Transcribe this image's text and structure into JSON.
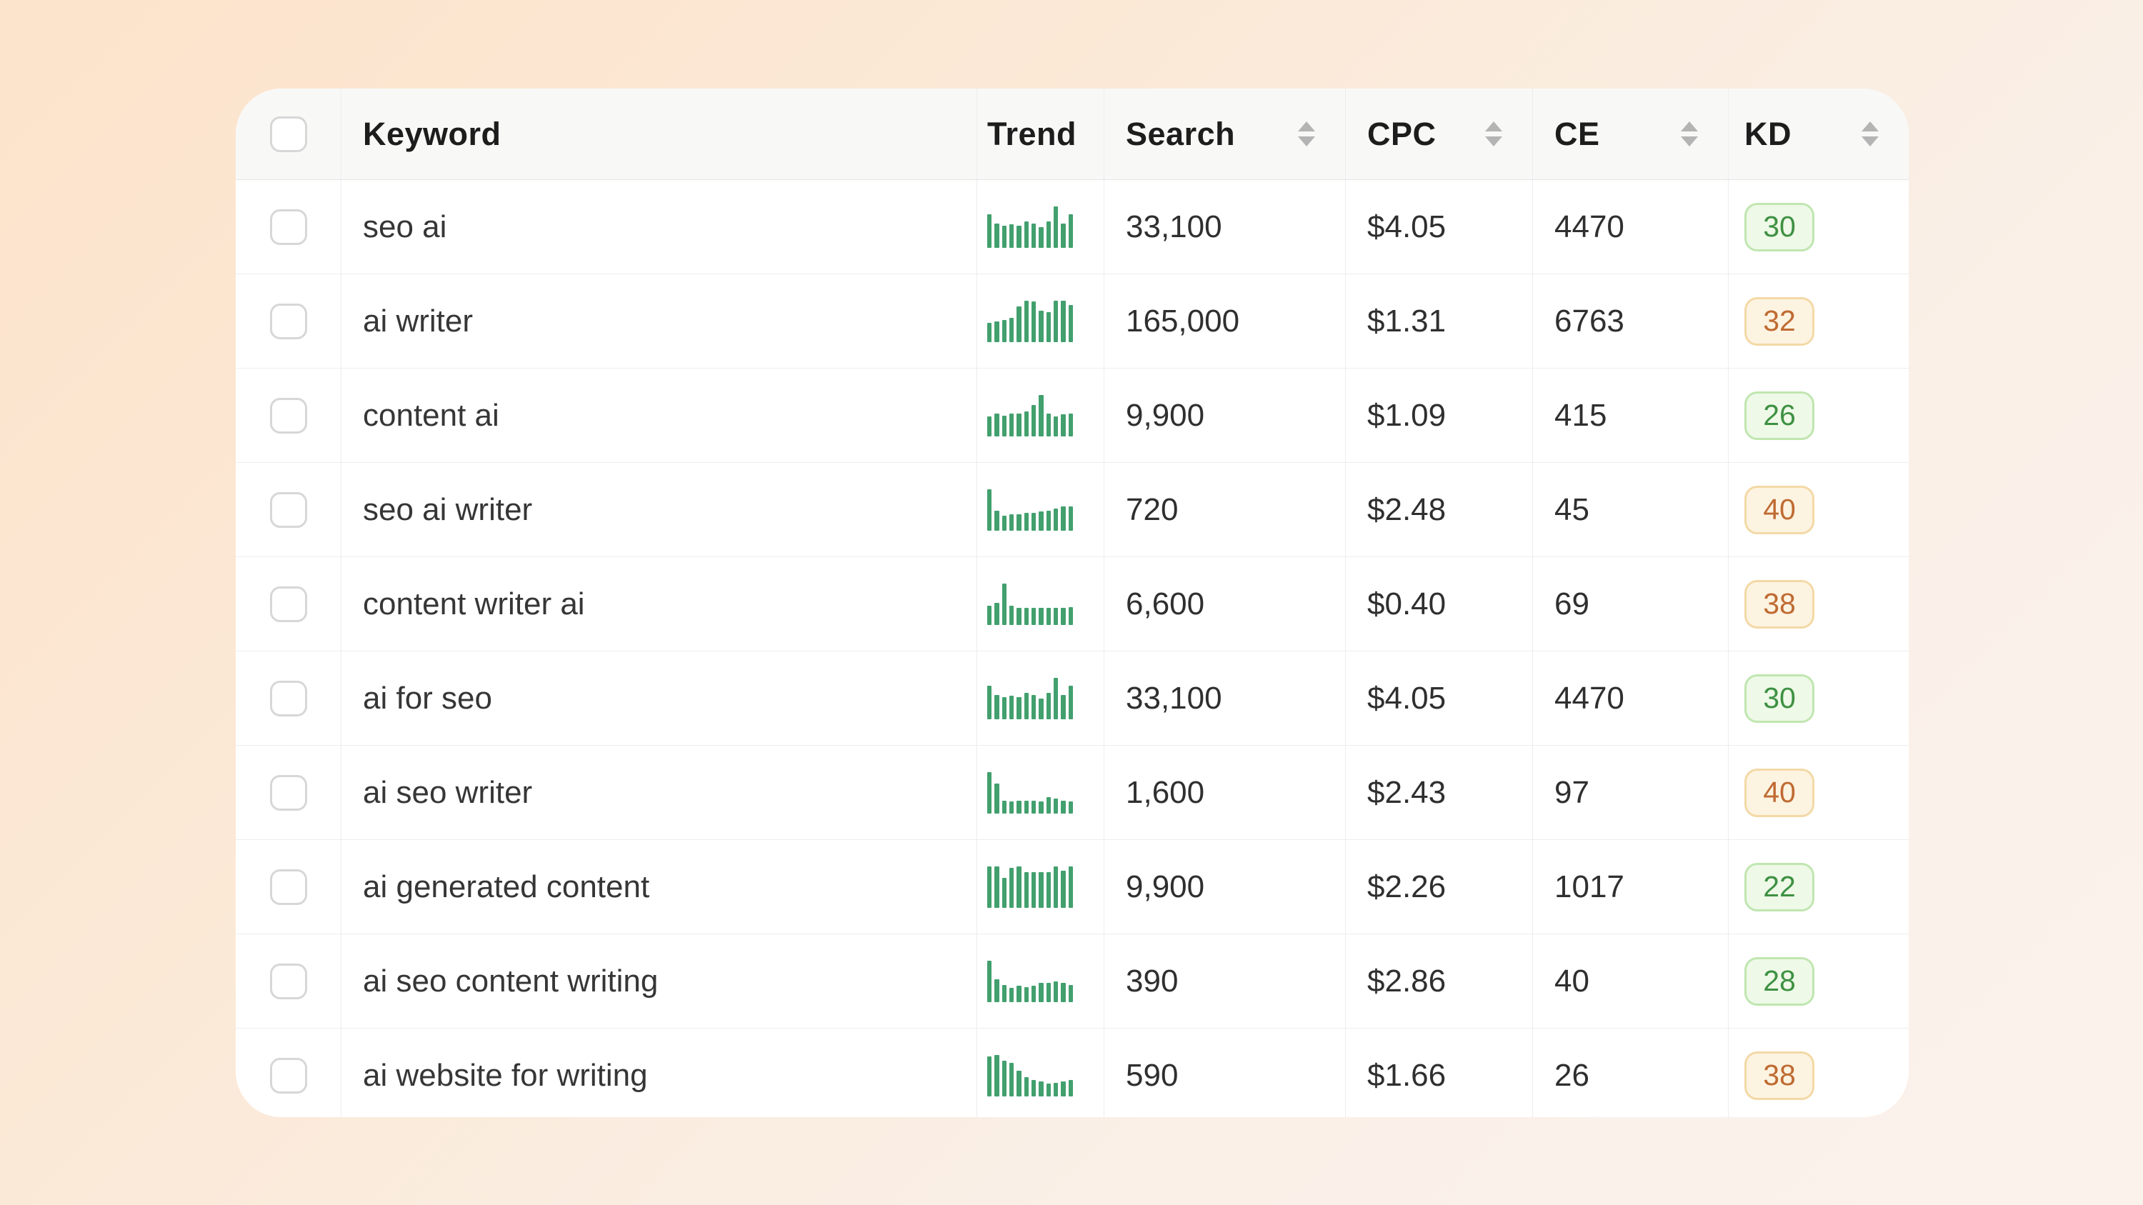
{
  "colors": {
    "trend_bar": "#42a06e",
    "kd_good_bg": "#eef9e8",
    "kd_good_border": "#c0e6b0",
    "kd_good_text": "#3e9142",
    "kd_warn_bg": "#fdf3e1",
    "kd_warn_border": "#f3d9a6",
    "kd_warn_text": "#bf6b32",
    "background_peach": "#fce3cb",
    "background_cream": "#faf0e8",
    "header_bg": "#f8f8f7"
  },
  "table": {
    "columns": {
      "keyword": {
        "label": "Keyword",
        "sortable": false
      },
      "trend": {
        "label": "Trend",
        "sortable": false
      },
      "search": {
        "label": "Search",
        "sortable": true
      },
      "cpc": {
        "label": "CPC",
        "sortable": true
      },
      "ce": {
        "label": "CE",
        "sortable": true
      },
      "kd": {
        "label": "KD",
        "sortable": true
      }
    },
    "rows": [
      {
        "keyword": "seo ai",
        "trend": [
          80,
          58,
          52,
          56,
          52,
          63,
          57,
          50,
          63,
          100,
          57,
          80
        ],
        "search": "33,100",
        "cpc": "$4.05",
        "ce": "4470",
        "kd": "30",
        "kd_level": "good"
      },
      {
        "keyword": "ai writer",
        "trend": [
          45,
          50,
          53,
          58,
          85,
          100,
          97,
          75,
          72,
          100,
          100,
          88
        ],
        "search": "165,000",
        "cpc": "$1.31",
        "ce": "6763",
        "kd": "32",
        "kd_level": "warn"
      },
      {
        "keyword": "content ai",
        "trend": [
          48,
          55,
          50,
          55,
          55,
          60,
          75,
          100,
          55,
          48,
          52,
          55
        ],
        "search": "9,900",
        "cpc": "$1.09",
        "ce": "415",
        "kd": "26",
        "kd_level": "good"
      },
      {
        "keyword": "seo ai writer",
        "trend": [
          100,
          48,
          35,
          38,
          38,
          42,
          42,
          46,
          48,
          52,
          58,
          58
        ],
        "search": "720",
        "cpc": "$2.48",
        "ce": "45",
        "kd": "40",
        "kd_level": "warn"
      },
      {
        "keyword": "content writer ai",
        "trend": [
          45,
          52,
          100,
          45,
          40,
          40,
          40,
          40,
          40,
          40,
          40,
          42
        ],
        "search": "6,600",
        "cpc": "$0.40",
        "ce": "69",
        "kd": "38",
        "kd_level": "warn"
      },
      {
        "keyword": "ai for seo",
        "trend": [
          80,
          58,
          52,
          56,
          52,
          63,
          57,
          50,
          63,
          100,
          57,
          80
        ],
        "search": "33,100",
        "cpc": "$4.05",
        "ce": "4470",
        "kd": "30",
        "kd_level": "good"
      },
      {
        "keyword": "ai seo writer",
        "trend": [
          100,
          72,
          30,
          28,
          30,
          30,
          30,
          28,
          38,
          35,
          30,
          28
        ],
        "search": "1,600",
        "cpc": "$2.43",
        "ce": "97",
        "kd": "40",
        "kd_level": "warn"
      },
      {
        "keyword": "ai generated content",
        "trend": [
          100,
          100,
          72,
          95,
          100,
          85,
          85,
          85,
          85,
          100,
          88,
          100
        ],
        "search": "9,900",
        "cpc": "$2.26",
        "ce": "1017",
        "kd": "22",
        "kd_level": "good"
      },
      {
        "keyword": "ai seo content writing",
        "trend": [
          100,
          55,
          40,
          33,
          38,
          35,
          38,
          45,
          45,
          50,
          45,
          40
        ],
        "search": "390",
        "cpc": "$2.86",
        "ce": "40",
        "kd": "28",
        "kd_level": "good"
      },
      {
        "keyword": "ai website for writing",
        "trend": [
          95,
          100,
          85,
          80,
          62,
          45,
          38,
          35,
          30,
          32,
          35,
          38
        ],
        "search": "590",
        "cpc": "$1.66",
        "ce": "26",
        "kd": "38",
        "kd_level": "warn"
      }
    ]
  }
}
